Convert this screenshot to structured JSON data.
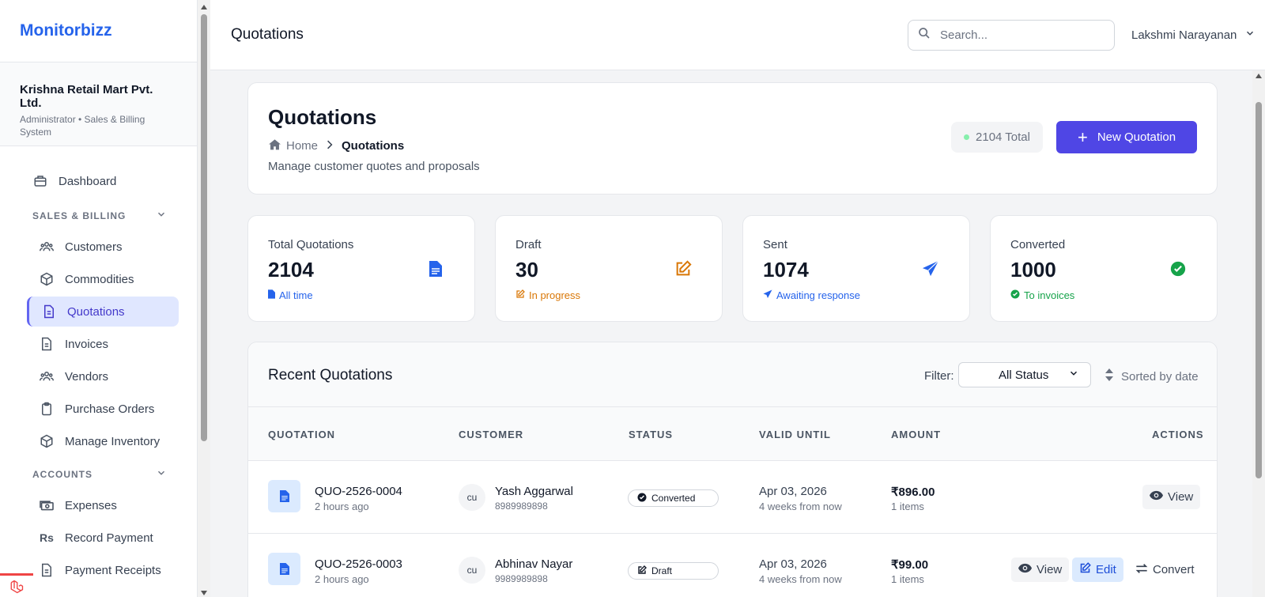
{
  "app": {
    "brand": "Monitorbizz",
    "org_name": "Krishna Retail Mart Pvt. Ltd.",
    "org_role": "Administrator • Sales & Billing System"
  },
  "sidebar": {
    "dashboard": {
      "label": "Dashboard",
      "icon": "dashboard-icon"
    },
    "sections": [
      {
        "title": "SALES & BILLING",
        "items": [
          {
            "label": "Customers",
            "icon": "users-icon"
          },
          {
            "label": "Commodities",
            "icon": "box-icon"
          },
          {
            "label": "Quotations",
            "icon": "document-icon",
            "active": true
          },
          {
            "label": "Invoices",
            "icon": "document-icon"
          },
          {
            "label": "Vendors",
            "icon": "users-icon"
          },
          {
            "label": "Purchase Orders",
            "icon": "clipboard-icon"
          },
          {
            "label": "Manage Inventory",
            "icon": "box-icon"
          }
        ]
      },
      {
        "title": "ACCOUNTS",
        "items": [
          {
            "label": "Expenses",
            "icon": "cash-icon"
          },
          {
            "label": "Record Payment",
            "icon": "rupee-icon"
          },
          {
            "label": "Payment Receipts",
            "icon": "document-icon"
          }
        ]
      }
    ]
  },
  "topbar": {
    "title": "Quotations",
    "search_placeholder": "Search...",
    "user_name": "Lakshmi Narayanan"
  },
  "header": {
    "title": "Quotations",
    "breadcrumb_home": "Home",
    "breadcrumb_current": "Quotations",
    "subtitle": "Manage customer quotes and proposals",
    "total_label": "2104 Total",
    "new_button": "New Quotation"
  },
  "stats": [
    {
      "label": "Total Quotations",
      "value": "2104",
      "note": "All time",
      "color": "#2563eb",
      "icon": "document-icon"
    },
    {
      "label": "Draft",
      "value": "30",
      "note": "In progress",
      "color": "#d97706",
      "icon": "edit-icon"
    },
    {
      "label": "Sent",
      "value": "1074",
      "note": "Awaiting response",
      "color": "#2563eb",
      "icon": "paper-plane-icon"
    },
    {
      "label": "Converted",
      "value": "1000",
      "note": "To invoices",
      "color": "#16a34a",
      "icon": "check-circle-icon"
    }
  ],
  "list": {
    "title": "Recent Quotations",
    "filter_label": "Filter:",
    "filter_value": "All Status",
    "sorted_label": "Sorted by date",
    "columns": [
      "QUOTATION",
      "CUSTOMER",
      "STATUS",
      "VALID UNTIL",
      "AMOUNT",
      "ACTIONS"
    ],
    "rows": [
      {
        "number": "QUO-2526-0004",
        "time": "2 hours ago",
        "avatar": "cu",
        "customer": "Yash Aggarwal",
        "phone": "8989989898",
        "status": "Converted",
        "valid_date": "Apr 03, 2026",
        "valid_rel": "4 weeks from now",
        "amount": "₹896.00",
        "items": "1 items",
        "actions": {
          "view": "View"
        }
      },
      {
        "number": "QUO-2526-0003",
        "time": "2 hours ago",
        "avatar": "cu",
        "customer": "Abhinav Nayar",
        "phone": "9989989898",
        "status": "Draft",
        "valid_date": "Apr 03, 2026",
        "valid_rel": "4 weeks from now",
        "amount": "₹99.00",
        "items": "1 items",
        "actions": {
          "view": "View",
          "edit": "Edit",
          "convert": "Convert"
        }
      }
    ]
  }
}
